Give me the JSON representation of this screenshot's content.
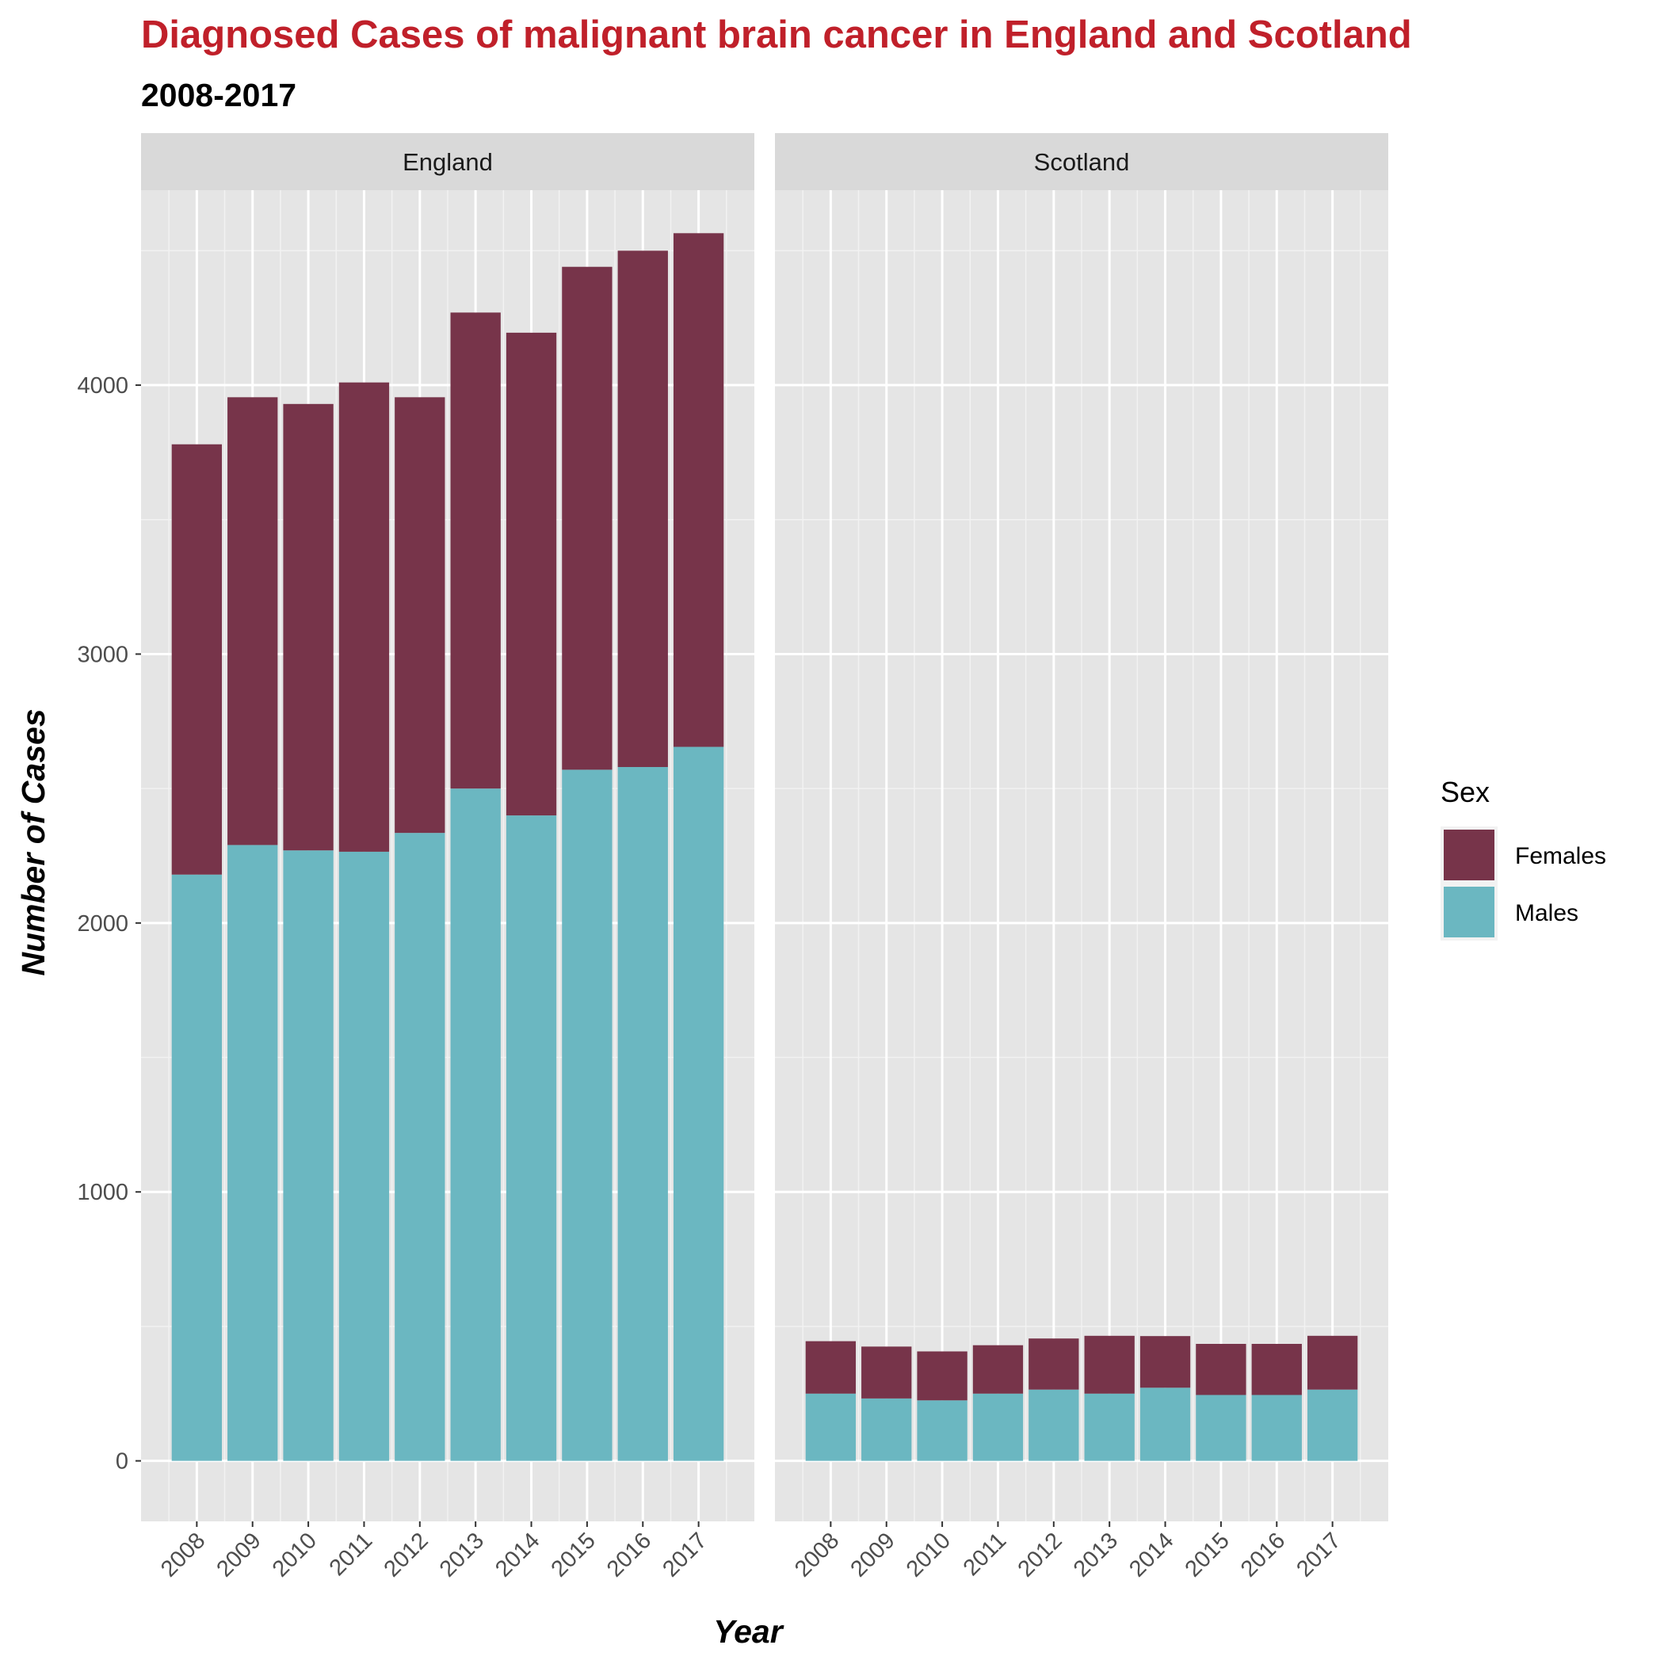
{
  "chart_data": {
    "type": "bar",
    "stacked": true,
    "title": "Diagnosed Cases of malignant brain cancer in England and Scotland",
    "subtitle": "2008-2017",
    "xlabel": "Year",
    "ylabel": "Number of Cases",
    "ylim": [
      -225,
      4725
    ],
    "yticks": [
      0,
      1000,
      2000,
      3000,
      4000
    ],
    "grid": true,
    "legend": {
      "title": "Sex",
      "position": "right",
      "entries": [
        "Females",
        "Males"
      ]
    },
    "colors": {
      "Females": "#77344a",
      "Males": "#6bb7c1"
    },
    "categories": [
      "2008",
      "2009",
      "2010",
      "2011",
      "2012",
      "2013",
      "2014",
      "2015",
      "2016",
      "2017"
    ],
    "panels": [
      {
        "name": "England",
        "series": [
          {
            "name": "Males",
            "values": [
              2180,
              2290,
              2270,
              2265,
              2335,
              2500,
              2400,
              2570,
              2580,
              2655
            ]
          },
          {
            "name": "Females",
            "values": [
              1600,
              1665,
              1660,
              1745,
              1620,
              1770,
              1795,
              1870,
              1920,
              1910
            ]
          }
        ]
      },
      {
        "name": "Scotland",
        "series": [
          {
            "name": "Males",
            "values": [
              250,
              232,
              225,
              250,
              265,
              250,
              272,
              245,
              245,
              265
            ]
          },
          {
            "name": "Females",
            "values": [
              195,
              193,
              182,
              180,
              190,
              215,
              192,
              190,
              190,
              200
            ]
          }
        ]
      }
    ]
  }
}
